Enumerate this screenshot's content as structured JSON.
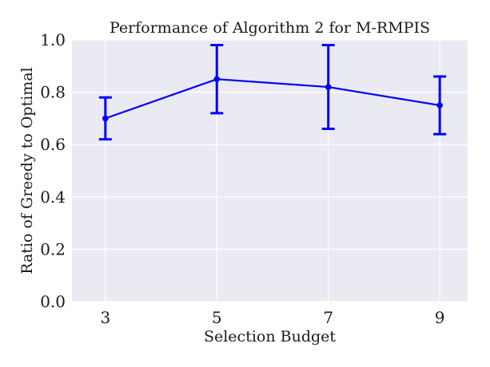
{
  "chart_data": {
    "type": "line",
    "title": "Performance of Algorithm 2 for M-RMPIS",
    "xlabel": "Selection Budget",
    "ylabel": "Ratio of Greedy to Optimal",
    "x": [
      3,
      5,
      7,
      9
    ],
    "x_ticks": [
      "3",
      "5",
      "7",
      "9"
    ],
    "y_ticks": [
      "0.0",
      "0.2",
      "0.4",
      "0.6",
      "0.8",
      "1.0"
    ],
    "ylim": [
      0.0,
      1.0
    ],
    "xlim": [
      2.4,
      9.5
    ],
    "grid": true,
    "series": [
      {
        "values": [
          0.7,
          0.85,
          0.82,
          0.75
        ],
        "err_low": [
          0.62,
          0.72,
          0.66,
          0.64
        ],
        "err_high": [
          0.78,
          0.98,
          0.98,
          0.86
        ],
        "color": "#0000ff"
      }
    ],
    "background": "#eaeaf2"
  }
}
